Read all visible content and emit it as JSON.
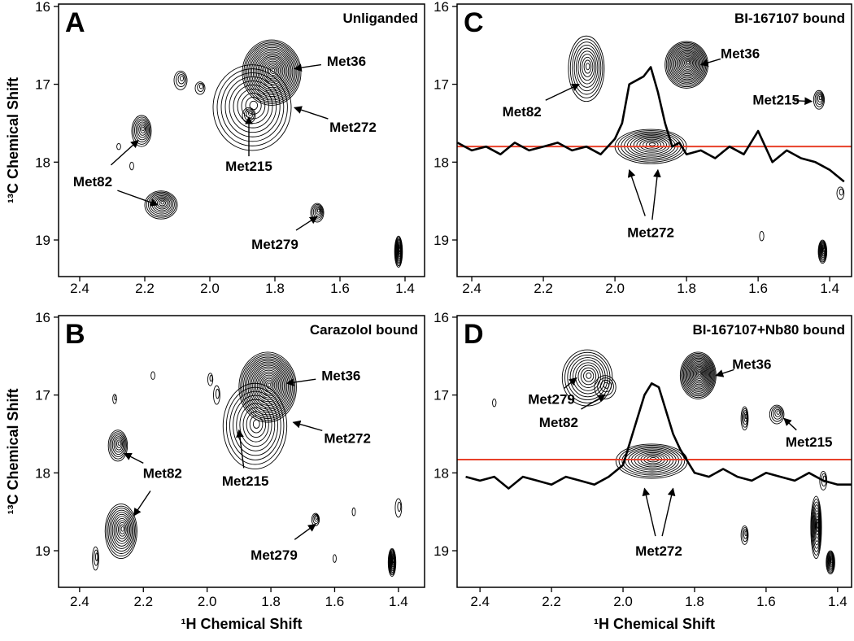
{
  "chart_data": [
    {
      "type": "contour",
      "title": "A",
      "subtitle": "Unliganded",
      "ylabel": "¹³C Chemical Shift",
      "xlim": [
        2.465,
        1.34
      ],
      "ylim": [
        15.97,
        19.47
      ],
      "xticks": [
        2.4,
        2.2,
        {
          "value": 2,
          "label": "2.0"
        },
        1.8,
        1.6,
        1.4
      ],
      "yticks": [
        16,
        17,
        18,
        19
      ],
      "color": "#000000",
      "peaks": [
        {
          "x": 1.87,
          "y": 17.3,
          "wx": 0.12,
          "wy": 0.55,
          "levels": 10
        },
        {
          "x": 1.81,
          "y": 16.85,
          "wx": 0.09,
          "wy": 0.42,
          "levels": 20
        },
        {
          "x": 1.88,
          "y": 17.4,
          "wx": 0.02,
          "wy": 0.1,
          "levels": 4
        },
        {
          "x": 2.21,
          "y": 17.6,
          "wx": 0.03,
          "wy": 0.2,
          "levels": 8
        },
        {
          "x": 2.15,
          "y": 18.55,
          "wx": 0.05,
          "wy": 0.18,
          "levels": 10
        },
        {
          "x": 2.09,
          "y": 16.95,
          "wx": 0.02,
          "wy": 0.12,
          "levels": 4
        },
        {
          "x": 2.03,
          "y": 17.05,
          "wx": 0.015,
          "wy": 0.08,
          "levels": 3
        },
        {
          "x": 1.67,
          "y": 18.65,
          "wx": 0.02,
          "wy": 0.12,
          "levels": 6
        },
        {
          "x": 1.42,
          "y": 19.15,
          "wx": 0.012,
          "wy": 0.2,
          "levels": 12
        },
        {
          "x": 2.28,
          "y": 17.8,
          "wx": 0.006,
          "wy": 0.04,
          "levels": 1
        },
        {
          "x": 2.24,
          "y": 18.05,
          "wx": 0.006,
          "wy": 0.05,
          "levels": 1
        }
      ],
      "annotations": [
        {
          "text": "Met36",
          "x": 1.58,
          "y": 16.7,
          "targets": [
            {
              "x": 1.74,
              "y": 16.8
            }
          ]
        },
        {
          "text": "Met272",
          "x": 1.56,
          "y": 17.55,
          "targets": [
            {
              "x": 1.74,
              "y": 17.3
            }
          ]
        },
        {
          "text": "Met215",
          "x": 1.88,
          "y": 18.05,
          "targets": [
            {
              "x": 1.88,
              "y": 17.42
            }
          ]
        },
        {
          "text": "Met82",
          "x": 2.36,
          "y": 18.25,
          "targets": [
            {
              "x": 2.22,
              "y": 17.72
            },
            {
              "x": 2.16,
              "y": 18.55
            }
          ]
        },
        {
          "text": "Met279",
          "x": 1.8,
          "y": 19.05,
          "targets": [
            {
              "x": 1.67,
              "y": 18.7
            }
          ]
        }
      ]
    },
    {
      "type": "contour",
      "title": "C",
      "subtitle": "BI-167107 bound",
      "xlim": [
        2.441,
        1.339
      ],
      "ylim": [
        15.97,
        19.47
      ],
      "xticks": [
        2.4,
        2.2,
        {
          "value": 2,
          "label": "2.0"
        },
        1.8,
        1.6,
        1.4
      ],
      "yticks": [
        16,
        17,
        18,
        19
      ],
      "color": "#000000",
      "line_color": "#e8402a",
      "ref_line": 17.8,
      "peaks": [
        {
          "x": 2.08,
          "y": 16.8,
          "wx": 0.05,
          "wy": 0.42,
          "levels": 10
        },
        {
          "x": 1.8,
          "y": 16.75,
          "wx": 0.06,
          "wy": 0.3,
          "levels": 18
        },
        {
          "x": 1.43,
          "y": 17.2,
          "wx": 0.015,
          "wy": 0.12,
          "levels": 5
        },
        {
          "x": 1.9,
          "y": 17.8,
          "wx": 0.1,
          "wy": 0.22,
          "levels": 12
        },
        {
          "x": 1.42,
          "y": 19.15,
          "wx": 0.012,
          "wy": 0.15,
          "levels": 10
        },
        {
          "x": 1.59,
          "y": 18.95,
          "wx": 0.006,
          "wy": 0.06,
          "levels": 1
        },
        {
          "x": 1.37,
          "y": 18.4,
          "wx": 0.01,
          "wy": 0.08,
          "levels": 2
        }
      ],
      "trace": {
        "x": [
          2.44,
          2.4,
          2.36,
          2.32,
          2.28,
          2.24,
          2.2,
          2.16,
          2.12,
          2.08,
          2.04,
          2.0,
          1.98,
          1.96,
          1.94,
          1.92,
          1.9,
          1.88,
          1.86,
          1.84,
          1.82,
          1.8,
          1.76,
          1.72,
          1.68,
          1.64,
          1.6,
          1.56,
          1.52,
          1.48,
          1.44,
          1.4,
          1.36
        ],
        "values": [
          17.75,
          17.85,
          17.8,
          17.9,
          17.75,
          17.85,
          17.8,
          17.75,
          17.85,
          17.8,
          17.9,
          17.7,
          17.5,
          17.0,
          16.95,
          16.9,
          16.78,
          17.1,
          17.5,
          17.8,
          17.75,
          17.9,
          17.85,
          17.95,
          17.8,
          17.9,
          17.6,
          18.0,
          17.85,
          17.95,
          18.0,
          18.1,
          18.25
        ]
      },
      "annotations": [
        {
          "text": "Met82",
          "x": 2.26,
          "y": 17.35,
          "targets": [
            {
              "x": 2.1,
              "y": 17.0
            }
          ]
        },
        {
          "text": "Met36",
          "x": 1.65,
          "y": 16.6,
          "targets": [
            {
              "x": 1.76,
              "y": 16.75
            }
          ]
        },
        {
          "text": "Met215",
          "x": 1.55,
          "y": 17.2,
          "targets": [
            {
              "x": 1.45,
              "y": 17.22
            }
          ]
        },
        {
          "text": "Met272",
          "x": 1.9,
          "y": 18.9,
          "targets": [
            {
              "x": 1.96,
              "y": 18.1
            },
            {
              "x": 1.88,
              "y": 18.1
            }
          ]
        }
      ]
    },
    {
      "type": "contour",
      "title": "B",
      "subtitle": "Carazolol bound",
      "ylabel": "¹³C Chemical Shift",
      "xlabel": "¹H Chemical Shift",
      "xlim": [
        2.466,
        1.318
      ],
      "ylim": [
        15.98,
        19.47
      ],
      "xticks": [
        2.4,
        2.2,
        {
          "value": 2,
          "label": "2.0"
        },
        1.8,
        1.6,
        1.4
      ],
      "yticks": [
        16,
        17,
        18,
        19
      ],
      "color": "#000000",
      "peaks": [
        {
          "x": 1.85,
          "y": 17.4,
          "wx": 0.1,
          "wy": 0.55,
          "levels": 10
        },
        {
          "x": 1.81,
          "y": 16.9,
          "wx": 0.09,
          "wy": 0.45,
          "levels": 20
        },
        {
          "x": 2.28,
          "y": 17.65,
          "wx": 0.03,
          "wy": 0.2,
          "levels": 8
        },
        {
          "x": 2.27,
          "y": 18.75,
          "wx": 0.05,
          "wy": 0.35,
          "levels": 12
        },
        {
          "x": 1.66,
          "y": 18.6,
          "wx": 0.012,
          "wy": 0.08,
          "levels": 4
        },
        {
          "x": 1.42,
          "y": 19.15,
          "wx": 0.012,
          "wy": 0.18,
          "levels": 12
        },
        {
          "x": 2.29,
          "y": 17.05,
          "wx": 0.006,
          "wy": 0.06,
          "levels": 2
        },
        {
          "x": 2.17,
          "y": 16.75,
          "wx": 0.006,
          "wy": 0.05,
          "levels": 1
        },
        {
          "x": 1.97,
          "y": 17.0,
          "wx": 0.01,
          "wy": 0.12,
          "levels": 2
        },
        {
          "x": 1.99,
          "y": 16.8,
          "wx": 0.008,
          "wy": 0.08,
          "levels": 2
        },
        {
          "x": 2.35,
          "y": 19.1,
          "wx": 0.01,
          "wy": 0.15,
          "levels": 3
        },
        {
          "x": 1.4,
          "y": 18.45,
          "wx": 0.01,
          "wy": 0.12,
          "levels": 2
        },
        {
          "x": 1.54,
          "y": 18.5,
          "wx": 0.005,
          "wy": 0.05,
          "levels": 1
        },
        {
          "x": 1.6,
          "y": 19.1,
          "wx": 0.005,
          "wy": 0.05,
          "levels": 1
        }
      ],
      "annotations": [
        {
          "text": "Met36",
          "x": 1.58,
          "y": 16.75,
          "targets": [
            {
              "x": 1.75,
              "y": 16.85
            }
          ]
        },
        {
          "text": "Met272",
          "x": 1.56,
          "y": 17.55,
          "targets": [
            {
              "x": 1.73,
              "y": 17.35
            }
          ]
        },
        {
          "text": "Met215",
          "x": 1.88,
          "y": 18.1,
          "targets": [
            {
              "x": 1.9,
              "y": 17.45
            }
          ]
        },
        {
          "text": "Met82",
          "x": 2.14,
          "y": 18.0,
          "targets": [
            {
              "x": 2.26,
              "y": 17.75
            },
            {
              "x": 2.23,
              "y": 18.55
            }
          ]
        },
        {
          "text": "Met279",
          "x": 1.79,
          "y": 19.05,
          "targets": [
            {
              "x": 1.66,
              "y": 18.66
            }
          ]
        }
      ]
    },
    {
      "type": "contour",
      "title": "D",
      "subtitle": "BI-167107+Nb80 bound",
      "xlabel": "¹H Chemical Shift",
      "xlim": [
        2.464,
        1.361
      ],
      "ylim": [
        15.98,
        19.47
      ],
      "xticks": [
        2.4,
        2.2,
        {
          "value": 2,
          "label": "2.0"
        },
        1.8,
        1.6,
        1.4
      ],
      "yticks": [
        16,
        17,
        18,
        19
      ],
      "color": "#000000",
      "line_color": "#e8402a",
      "ref_line": 17.83,
      "peaks": [
        {
          "x": 2.1,
          "y": 16.78,
          "wx": 0.07,
          "wy": 0.36,
          "levels": 10
        },
        {
          "x": 2.05,
          "y": 16.9,
          "wx": 0.03,
          "wy": 0.15,
          "levels": 4
        },
        {
          "x": 1.79,
          "y": 16.75,
          "wx": 0.05,
          "wy": 0.3,
          "levels": 18
        },
        {
          "x": 1.57,
          "y": 17.25,
          "wx": 0.02,
          "wy": 0.12,
          "levels": 5
        },
        {
          "x": 1.66,
          "y": 17.3,
          "wx": 0.01,
          "wy": 0.15,
          "levels": 5
        },
        {
          "x": 1.66,
          "y": 18.8,
          "wx": 0.01,
          "wy": 0.12,
          "levels": 4
        },
        {
          "x": 1.92,
          "y": 17.85,
          "wx": 0.1,
          "wy": 0.22,
          "levels": 12
        },
        {
          "x": 1.46,
          "y": 18.7,
          "wx": 0.015,
          "wy": 0.4,
          "levels": 10
        },
        {
          "x": 1.42,
          "y": 19.15,
          "wx": 0.012,
          "wy": 0.15,
          "levels": 10
        },
        {
          "x": 2.36,
          "y": 17.1,
          "wx": 0.005,
          "wy": 0.05,
          "levels": 1
        },
        {
          "x": 1.44,
          "y": 18.1,
          "wx": 0.01,
          "wy": 0.12,
          "levels": 3
        }
      ],
      "trace": {
        "x": [
          2.44,
          2.4,
          2.36,
          2.32,
          2.28,
          2.24,
          2.2,
          2.16,
          2.12,
          2.08,
          2.04,
          2.0,
          1.98,
          1.96,
          1.94,
          1.92,
          1.9,
          1.88,
          1.86,
          1.84,
          1.82,
          1.8,
          1.76,
          1.72,
          1.68,
          1.64,
          1.6,
          1.56,
          1.52,
          1.48,
          1.44,
          1.4,
          1.36
        ],
        "values": [
          18.05,
          18.1,
          18.05,
          18.2,
          18.05,
          18.1,
          18.15,
          18.05,
          18.1,
          18.15,
          18.05,
          17.9,
          17.6,
          17.3,
          17.0,
          16.85,
          16.9,
          17.2,
          17.5,
          17.7,
          17.85,
          18.0,
          18.05,
          17.95,
          18.05,
          18.1,
          18.0,
          18.05,
          18.1,
          18.0,
          18.1,
          18.15,
          18.15
        ]
      },
      "annotations": [
        {
          "text": "Met36",
          "x": 1.64,
          "y": 16.6,
          "targets": [
            {
              "x": 1.74,
              "y": 16.75
            }
          ]
        },
        {
          "text": "Met279",
          "x": 2.2,
          "y": 17.05,
          "targets": [
            {
              "x": 2.13,
              "y": 16.78
            }
          ]
        },
        {
          "text": "Met82",
          "x": 2.18,
          "y": 17.35,
          "targets": [
            {
              "x": 2.05,
              "y": 17.0
            }
          ]
        },
        {
          "text": "Met215",
          "x": 1.48,
          "y": 17.6,
          "targets": [
            {
              "x": 1.55,
              "y": 17.3
            }
          ]
        },
        {
          "text": "Met272",
          "x": 1.9,
          "y": 19.0,
          "targets": [
            {
              "x": 1.94,
              "y": 18.2
            },
            {
              "x": 1.86,
              "y": 18.2
            }
          ]
        }
      ]
    }
  ]
}
